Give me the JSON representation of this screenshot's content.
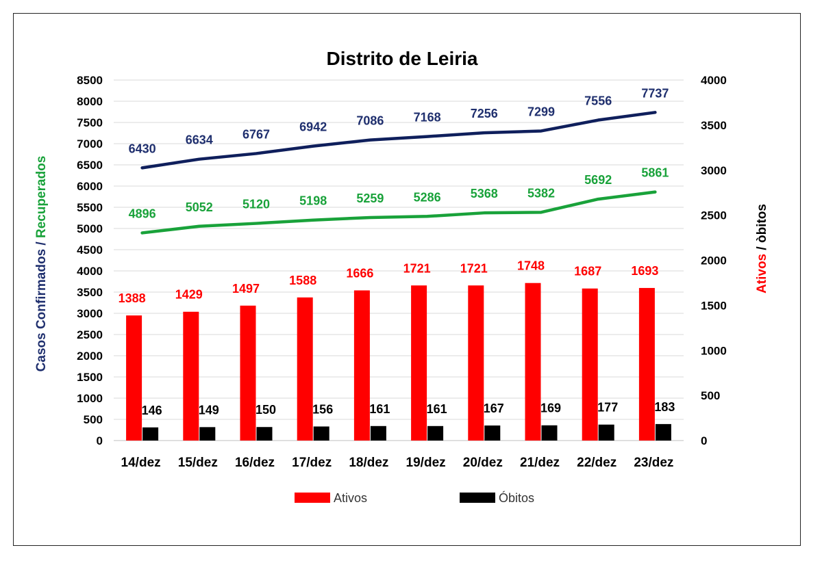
{
  "chart_data": {
    "type": "bar",
    "title": "Distrito de Leiria",
    "categories": [
      "14/dez",
      "15/dez",
      "16/dez",
      "17/dez",
      "18/dez",
      "19/dez",
      "20/dez",
      "21/dez",
      "22/dez",
      "23/dez"
    ],
    "y_left": {
      "range": [
        0,
        8500
      ],
      "ticks": [
        0,
        500,
        1000,
        1500,
        2000,
        2500,
        3000,
        3500,
        4000,
        4500,
        5000,
        5500,
        6000,
        6500,
        7000,
        7500,
        8000,
        8500
      ],
      "label_parts": [
        {
          "text": "Casos Confirmados / ",
          "color": "#1f2f6e"
        },
        {
          "text": "Recuperados",
          "color": "#19a23a"
        }
      ]
    },
    "y_right": {
      "range": [
        0,
        4000
      ],
      "ticks": [
        0,
        500,
        1000,
        1500,
        2000,
        2500,
        3000,
        3500,
        4000
      ],
      "label_parts": [
        {
          "text": "Ativos",
          "color": "#ff0000"
        },
        {
          "text": " / òbitos",
          "color": "#000000"
        }
      ]
    },
    "series": [
      {
        "key": "confirmados",
        "type": "line",
        "axis": "left",
        "color": "#0f1f5c",
        "label_color": "#1f2f6e",
        "values": [
          6430,
          6634,
          6767,
          6942,
          7086,
          7168,
          7256,
          7299,
          7556,
          7737
        ]
      },
      {
        "key": "recuperados",
        "type": "line",
        "axis": "left",
        "color": "#19a23a",
        "label_color": "#19a23a",
        "values": [
          4896,
          5052,
          5120,
          5198,
          5259,
          5286,
          5368,
          5382,
          5692,
          5861
        ]
      },
      {
        "key": "ativos",
        "name": "Ativos",
        "type": "bar",
        "axis": "right",
        "color": "#ff0000",
        "label_color": "#ff0000",
        "values": [
          1388,
          1429,
          1497,
          1588,
          1666,
          1721,
          1721,
          1748,
          1687,
          1693
        ]
      },
      {
        "key": "obitos",
        "name": "Óbitos",
        "type": "bar",
        "axis": "right",
        "color": "#000000",
        "label_color": "#000000",
        "values": [
          146,
          149,
          150,
          156,
          161,
          161,
          167,
          169,
          177,
          183
        ]
      }
    ],
    "grid": "horizontal",
    "legend": {
      "position": "bottom",
      "items": [
        {
          "label": "Ativos",
          "color": "#ff0000"
        },
        {
          "label": "Óbitos",
          "color": "#000000"
        }
      ]
    },
    "colors": {
      "grid": "#d9d9d9",
      "frame": "#222222"
    }
  }
}
